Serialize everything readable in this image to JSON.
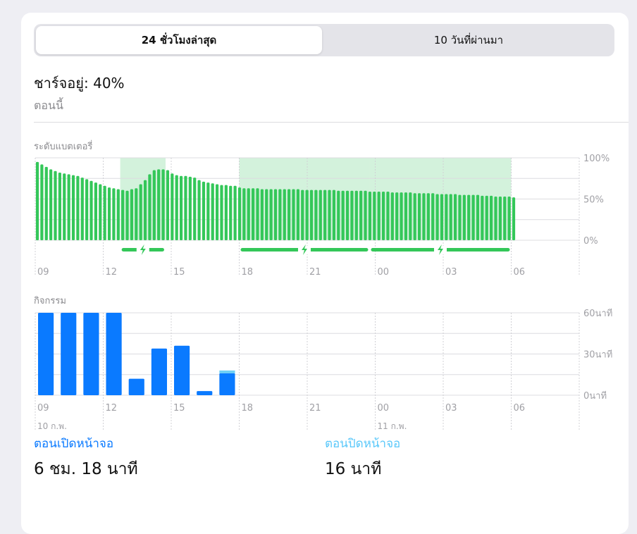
{
  "tabs": [
    {
      "label": "24 ชั่วโมงล่าสุด",
      "selected": true
    },
    {
      "label": "10 วันที่ผ่านมา",
      "selected": false
    }
  ],
  "charge": {
    "title": "ชาร์จอยู่: 40%",
    "subtitle": "ตอนนี้"
  },
  "battery_section_label": "ระดับแบตเตอรี่",
  "activity_section_label": "กิจกรรม",
  "stats": {
    "screen_on_label": "ตอนเปิดหน้าจอ",
    "screen_on_value": "6 ชม. 18 นาที",
    "screen_off_label": "ตอนปิดหน้าจอ",
    "screen_off_value": "16 นาที"
  },
  "colors": {
    "battery_bar": "#34c759",
    "charging_region": "#d3f2dc",
    "activity_on": "#0a7aff",
    "activity_off": "#6ed0f5",
    "screen_on_label": "#0a7aff",
    "screen_off_label": "#5ac8fa"
  },
  "chart_data": [
    {
      "type": "bar",
      "title": "ระดับแบตเตอรี่",
      "x_tick_labels": [
        "09",
        "12",
        "15",
        "18",
        "21",
        "00",
        "03",
        "06"
      ],
      "y_tick_labels": [
        "100%",
        "50%",
        "0%"
      ],
      "ylim": [
        0,
        100
      ],
      "grid": true,
      "values": [
        95,
        92,
        89,
        86,
        84,
        82,
        81,
        80,
        79,
        78,
        76,
        74,
        72,
        70,
        68,
        66,
        64,
        63,
        62,
        61,
        60,
        62,
        63,
        68,
        73,
        80,
        85,
        86,
        86,
        85,
        81,
        79,
        78,
        78,
        77,
        76,
        73,
        71,
        70,
        69,
        68,
        67,
        67,
        66,
        66,
        64,
        63,
        63,
        63,
        63,
        62,
        62,
        62,
        62,
        62,
        62,
        62,
        62,
        62,
        61,
        61,
        61,
        61,
        61,
        61,
        61,
        61,
        60,
        60,
        60,
        60,
        60,
        60,
        60,
        59,
        59,
        59,
        59,
        59,
        58,
        58,
        58,
        58,
        58,
        57,
        57,
        57,
        57,
        57,
        56,
        56,
        56,
        56,
        56,
        55,
        55,
        55,
        55,
        55,
        54,
        54,
        54,
        53,
        53,
        53,
        53,
        52
      ],
      "charging_periods": [
        [
          "12:45",
          "14:45"
        ],
        [
          "18:00",
          "23:45"
        ],
        [
          "23:45",
          "06:00"
        ]
      ]
    },
    {
      "type": "bar",
      "title": "กิจกรรม",
      "x_tick_labels": [
        "09",
        "12",
        "15",
        "18",
        "21",
        "00",
        "03",
        "06"
      ],
      "date_labels": [
        {
          "at": "09",
          "label": "10 ก.พ."
        },
        {
          "at": "00",
          "label": "11 ก.พ."
        }
      ],
      "y_tick_labels": [
        "60นาที",
        "30นาที",
        "0นาที"
      ],
      "ylim": [
        0,
        60
      ],
      "grid": true,
      "series": [
        {
          "values": [
            60,
            60,
            60,
            60,
            12,
            34,
            36,
            3,
            16
          ]
        },
        {
          "values": [
            0,
            0,
            0,
            0,
            0,
            0,
            0,
            0,
            2
          ]
        }
      ]
    }
  ]
}
